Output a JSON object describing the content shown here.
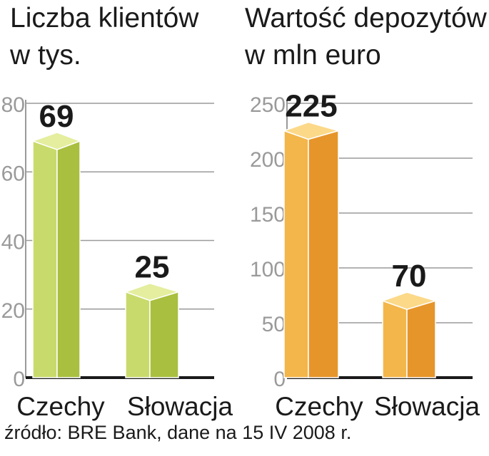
{
  "source": "źródło: BRE Bank, dane na 15 IV 2008 r.",
  "chart_data": [
    {
      "type": "bar",
      "title_lines": [
        "Liczba klientów",
        "w tys."
      ],
      "categories": [
        "Czechy",
        "Słowacja"
      ],
      "values": [
        69,
        25
      ],
      "value_labels": [
        "69",
        "25"
      ],
      "ylim": [
        0,
        80
      ],
      "yticks": [
        0,
        20,
        40,
        60,
        80
      ],
      "grid": true,
      "colors": {
        "front": "#c9da6c",
        "side": "#a9bf3f",
        "top": "#e4ee9e"
      }
    },
    {
      "type": "bar",
      "title_lines": [
        "Wartość depozytów",
        "w mln euro"
      ],
      "categories": [
        "Czechy",
        "Słowacja"
      ],
      "values": [
        225,
        70
      ],
      "value_labels": [
        "225",
        "70"
      ],
      "ylim": [
        0,
        250
      ],
      "yticks": [
        0,
        50,
        100,
        150,
        200,
        250
      ],
      "grid": true,
      "colors": {
        "front": "#f3b64a",
        "side": "#e6952a",
        "top": "#fbd989"
      }
    }
  ]
}
